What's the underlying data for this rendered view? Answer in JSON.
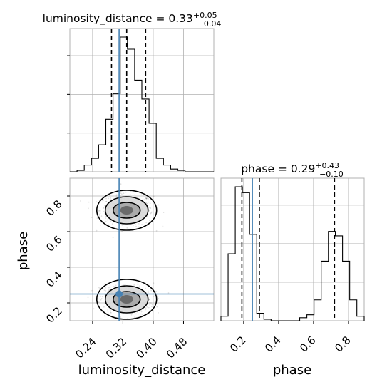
{
  "chart_data": {
    "type": "corner",
    "parameters": [
      "luminosity_distance",
      "phase"
    ],
    "truth_color": "#4682b4",
    "panels": [
      {
        "type": "histogram",
        "parameter": "luminosity_distance",
        "title": {
          "text": "luminosity_distance = 0.33",
          "plus": "+0.05",
          "minus": "−0.04"
        },
        "xlim": [
          0.18,
          0.56
        ],
        "xticks": [
          "0.24",
          "0.32",
          "0.40",
          "0.48"
        ],
        "bin_edges": [
          0.18,
          0.199,
          0.218,
          0.237,
          0.256,
          0.275,
          0.294,
          0.313,
          0.332,
          0.351,
          0.37,
          0.389,
          0.408,
          0.427,
          0.446,
          0.465,
          0.484,
          0.503,
          0.522,
          0.541,
          0.56
        ],
        "counts": [
          0,
          0.01,
          0.05,
          0.1,
          0.2,
          0.39,
          0.58,
          1.0,
          0.91,
          0.68,
          0.54,
          0.36,
          0.1,
          0.05,
          0.02,
          0.01,
          0,
          0,
          0,
          0
        ],
        "quantiles": [
          0.29,
          0.33,
          0.38
        ],
        "truth": 0.31
      },
      {
        "type": "histogram",
        "parameter": "phase",
        "title": {
          "text": "phase = 0.29",
          "plus": "+0.43",
          "minus": "−0.10"
        },
        "xlim": [
          0.07,
          0.89
        ],
        "xticks": [
          "0.2",
          "0.4",
          "0.6",
          "0.8"
        ],
        "bin_edges": [
          0.07,
          0.111,
          0.152,
          0.193,
          0.234,
          0.275,
          0.316,
          0.357,
          0.398,
          0.439,
          0.48,
          0.521,
          0.562,
          0.603,
          0.644,
          0.685,
          0.725,
          0.766,
          0.807,
          0.848,
          0.89
        ],
        "counts": [
          0.03,
          0.45,
          0.9,
          0.86,
          0.58,
          0.05,
          0.01,
          0,
          0,
          0,
          0,
          0.02,
          0.04,
          0.14,
          0.4,
          0.6,
          0.57,
          0.4,
          0.14,
          0.03
        ],
        "quantiles": [
          0.19,
          0.29,
          0.72
        ],
        "truth": 0.25
      },
      {
        "type": "2d-density",
        "x_parameter": "luminosity_distance",
        "y_parameter": "phase",
        "xlim": [
          0.18,
          0.56
        ],
        "ylim": [
          0.1,
          0.9
        ],
        "xticks": [
          "0.24",
          "0.32",
          "0.40",
          "0.48"
        ],
        "yticks": [
          "0.2",
          "0.4",
          "0.6",
          "0.8"
        ],
        "xlabel": "luminosity_distance",
        "ylabel": "phase",
        "modes": [
          {
            "center_x": 0.33,
            "center_y": 0.72,
            "weight": 0.55
          },
          {
            "center_x": 0.33,
            "center_y": 0.22,
            "weight": 0.45
          }
        ],
        "truth": {
          "x": 0.31,
          "y": 0.25
        }
      }
    ],
    "bottom_xlabel_right": "phase"
  }
}
